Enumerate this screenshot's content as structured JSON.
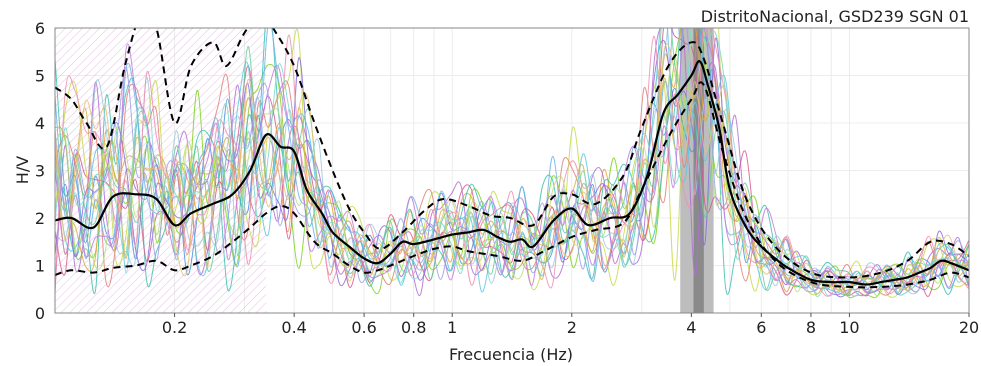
{
  "chart_data": {
    "type": "line",
    "title": "DistritoNacional, GSD239 SGN 01",
    "xlabel": "Frecuencia (Hz)",
    "ylabel": "H/V",
    "xscale": "log",
    "xlim": [
      0.1,
      20
    ],
    "ylim": [
      0,
      6
    ],
    "x_ticks": [
      {
        "value": 0.2,
        "label": "0.2"
      },
      {
        "value": 0.4,
        "label": "0.4"
      },
      {
        "value": 0.6,
        "label": "0.6"
      },
      {
        "value": 0.8,
        "label": "0.8"
      },
      {
        "value": 1,
        "label": "1"
      },
      {
        "value": 2,
        "label": "2"
      },
      {
        "value": 4,
        "label": "4"
      },
      {
        "value": 6,
        "label": "6"
      },
      {
        "value": 8,
        "label": "8"
      },
      {
        "value": 10,
        "label": "10"
      },
      {
        "value": 20,
        "label": "20"
      }
    ],
    "y_ticks": [
      {
        "value": 0,
        "label": "0"
      },
      {
        "value": 1,
        "label": "1"
      },
      {
        "value": 2,
        "label": "2"
      },
      {
        "value": 3,
        "label": "3"
      },
      {
        "value": 4,
        "label": "4"
      },
      {
        "value": 5,
        "label": "5"
      },
      {
        "value": 6,
        "label": "6"
      }
    ],
    "grid": true,
    "invalid_region": {
      "x_range": [
        0.1,
        0.34
      ],
      "y_range": [
        0,
        6
      ],
      "style": "hatched"
    },
    "peak_band_outer": [
      3.75,
      4.55
    ],
    "peak_band_inner": [
      4.05,
      4.3
    ],
    "series": [
      {
        "role": "mean",
        "color": "#000000",
        "dash": false,
        "x": [
          0.1,
          0.11,
          0.125,
          0.14,
          0.16,
          0.18,
          0.2,
          0.22,
          0.25,
          0.28,
          0.31,
          0.34,
          0.37,
          0.4,
          0.43,
          0.47,
          0.5,
          0.55,
          0.6,
          0.65,
          0.7,
          0.75,
          0.8,
          0.9,
          1.0,
          1.1,
          1.2,
          1.3,
          1.4,
          1.5,
          1.6,
          1.8,
          2.0,
          2.2,
          2.5,
          2.8,
          3.1,
          3.4,
          3.7,
          4.0,
          4.2,
          4.4,
          4.7,
          5.0,
          5.5,
          6.0,
          6.5,
          7.0,
          8.0,
          9.0,
          10.0,
          11.0,
          12.0,
          13.0,
          14.0,
          15.0,
          16.0,
          17.0,
          18.0,
          20.0
        ],
        "y": [
          1.95,
          2.0,
          1.8,
          2.45,
          2.5,
          2.4,
          1.85,
          2.1,
          2.3,
          2.5,
          3.0,
          3.75,
          3.5,
          3.4,
          2.6,
          2.1,
          1.7,
          1.4,
          1.15,
          1.05,
          1.25,
          1.5,
          1.45,
          1.55,
          1.65,
          1.7,
          1.75,
          1.6,
          1.5,
          1.55,
          1.4,
          1.95,
          2.2,
          1.85,
          2.0,
          2.1,
          2.9,
          4.2,
          4.6,
          5.0,
          5.3,
          4.8,
          3.9,
          2.6,
          1.8,
          1.4,
          1.15,
          0.95,
          0.7,
          0.65,
          0.65,
          0.6,
          0.65,
          0.7,
          0.75,
          0.85,
          0.95,
          1.1,
          1.05,
          0.9
        ]
      },
      {
        "role": "mean-plus-std",
        "color": "#000000",
        "dash": true,
        "x": [
          0.1,
          0.11,
          0.12,
          0.135,
          0.15,
          0.165,
          0.18,
          0.2,
          0.22,
          0.25,
          0.27,
          0.3,
          0.33,
          0.36,
          0.4,
          0.45,
          0.5,
          0.55,
          0.6,
          0.66,
          0.75,
          0.85,
          0.95,
          1.1,
          1.25,
          1.4,
          1.6,
          1.8,
          2.0,
          2.3,
          2.7,
          3.0,
          3.5,
          4.0,
          4.3,
          4.8,
          5.5,
          6.5,
          8.0,
          10.0,
          12.0,
          14.0,
          16.0,
          18.0,
          20.0
        ],
        "y": [
          4.75,
          4.5,
          4.0,
          3.5,
          5.2,
          6.3,
          6.0,
          4.0,
          5.2,
          5.7,
          5.2,
          5.9,
          6.3,
          5.9,
          5.2,
          4.0,
          3.0,
          2.2,
          1.7,
          1.35,
          1.7,
          2.15,
          2.4,
          2.25,
          2.05,
          2.0,
          1.85,
          2.45,
          2.5,
          2.3,
          2.9,
          3.9,
          5.2,
          5.7,
          5.35,
          4.0,
          2.4,
          1.4,
          0.85,
          0.75,
          0.85,
          1.1,
          1.5,
          1.45,
          1.2
        ]
      },
      {
        "role": "mean-minus-std",
        "color": "#000000",
        "dash": true,
        "x": [
          0.1,
          0.11,
          0.125,
          0.14,
          0.16,
          0.18,
          0.2,
          0.22,
          0.25,
          0.28,
          0.31,
          0.34,
          0.37,
          0.4,
          0.45,
          0.5,
          0.55,
          0.6,
          0.65,
          0.7,
          0.8,
          0.9,
          1.0,
          1.1,
          1.3,
          1.5,
          1.7,
          2.0,
          2.3,
          2.7,
          3.0,
          3.5,
          4.0,
          4.3,
          4.8,
          5.5,
          6.5,
          8.0,
          10.0,
          12.0,
          14.0,
          16.0,
          18.0,
          20.0
        ],
        "y": [
          0.8,
          0.9,
          0.85,
          0.95,
          1.0,
          1.1,
          0.9,
          1.0,
          1.2,
          1.5,
          1.8,
          2.1,
          2.25,
          2.1,
          1.5,
          1.25,
          1.0,
          0.85,
          0.9,
          1.0,
          1.2,
          1.35,
          1.4,
          1.3,
          1.2,
          1.1,
          1.3,
          1.6,
          1.75,
          1.9,
          2.6,
          3.7,
          4.5,
          4.8,
          3.4,
          2.0,
          1.1,
          0.65,
          0.55,
          0.55,
          0.6,
          0.7,
          0.85,
          0.75
        ]
      }
    ],
    "window_curve_colors": [
      "#4a90d9",
      "#7ed321",
      "#e8a33c",
      "#b06dd6",
      "#3fbfb0",
      "#d95a8c",
      "#9ecae1",
      "#c8d94a",
      "#8a6cd9",
      "#5ac8e0",
      "#e0807a",
      "#66cc99",
      "#d6b34a",
      "#a0a0e8",
      "#f08fb0",
      "#6fb3e8",
      "#b8e07a",
      "#c47ad9",
      "#e8c07a",
      "#7ad9c8"
    ]
  }
}
